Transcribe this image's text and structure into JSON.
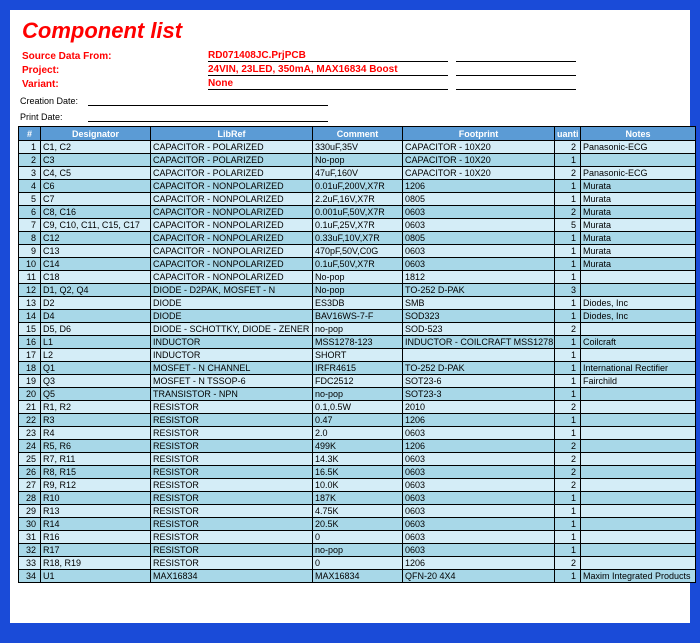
{
  "title": "Component list",
  "meta": {
    "source_label": "Source Data From:",
    "source_value": "RD071408JC.PrjPCB",
    "project_label": "Project:",
    "project_value": "24VIN, 23LED, 350mA, MAX16834 Boost",
    "variant_label": "Variant:",
    "variant_value": "None",
    "creation_label": "Creation Date:",
    "print_label": "Print Date:"
  },
  "columns": [
    "#",
    "Designator",
    "LibRef",
    "Comment",
    "Footprint",
    "uanti",
    "Notes"
  ],
  "rows": [
    [
      "1",
      "C1, C2",
      "CAPACITOR - POLARIZED",
      "330uF,35V",
      "CAPACITOR - 10X20",
      "2",
      "Panasonic-ECG"
    ],
    [
      "2",
      "C3",
      "CAPACITOR - POLARIZED",
      "No-pop",
      "CAPACITOR - 10X20",
      "1",
      ""
    ],
    [
      "3",
      "C4, C5",
      "CAPACITOR - POLARIZED",
      "47uF,160V",
      "CAPACITOR - 10X20",
      "2",
      "Panasonic-ECG"
    ],
    [
      "4",
      "C6",
      "CAPACITOR - NONPOLARIZED",
      "0.01uF,200V,X7R",
      "1206",
      "1",
      "Murata"
    ],
    [
      "5",
      "C7",
      "CAPACITOR - NONPOLARIZED",
      "2.2uF,16V,X7R",
      "0805",
      "1",
      "Murata"
    ],
    [
      "6",
      "C8, C16",
      "CAPACITOR - NONPOLARIZED",
      "0.001uF,50V,X7R",
      "0603",
      "2",
      "Murata"
    ],
    [
      "7",
      "C9, C10, C11, C15, C17",
      "CAPACITOR - NONPOLARIZED",
      "0.1uF,25V,X7R",
      "0603",
      "5",
      "Murata"
    ],
    [
      "8",
      "C12",
      "CAPACITOR - NONPOLARIZED",
      "0.33uF,10V,X7R",
      "0805",
      "1",
      "Murata"
    ],
    [
      "9",
      "C13",
      "CAPACITOR - NONPOLARIZED",
      "470pF,50V,C0G",
      "0603",
      "1",
      "Murata"
    ],
    [
      "10",
      "C14",
      "CAPACITOR - NONPOLARIZED",
      "0.1uF,50V,X7R",
      "0603",
      "1",
      "Murata"
    ],
    [
      "11",
      "C18",
      "CAPACITOR - NONPOLARIZED",
      "No-pop",
      "1812",
      "1",
      ""
    ],
    [
      "12",
      "D1, Q2, Q4",
      "DIODE - D2PAK, MOSFET - N",
      "No-pop",
      "TO-252 D-PAK",
      "3",
      ""
    ],
    [
      "13",
      "D2",
      "DIODE",
      "ES3DB",
      "SMB",
      "1",
      "Diodes, Inc"
    ],
    [
      "14",
      "D4",
      "DIODE",
      "BAV16WS-7-F",
      "SOD323",
      "1",
      "Diodes, Inc"
    ],
    [
      "15",
      "D5, D6",
      "DIODE - SCHOTTKY, DIODE - ZENER",
      "no-pop",
      "SOD-523",
      "2",
      ""
    ],
    [
      "16",
      "L1",
      "INDUCTOR",
      "MSS1278-123",
      "INDUCTOR - COILCRAFT MSS1278",
      "1",
      "Coilcraft"
    ],
    [
      "17",
      "L2",
      "INDUCTOR",
      "SHORT",
      "",
      "1",
      ""
    ],
    [
      "18",
      "Q1",
      "MOSFET - N CHANNEL",
      "IRFR4615",
      "TO-252 D-PAK",
      "1",
      "International Rectifier"
    ],
    [
      "19",
      "Q3",
      "MOSFET - N TSSOP-6",
      "FDC2512",
      "SOT23-6",
      "1",
      "Fairchild"
    ],
    [
      "20",
      "Q5",
      "TRANSISTOR - NPN",
      "no-pop",
      "SOT23-3",
      "1",
      ""
    ],
    [
      "21",
      "R1, R2",
      "RESISTOR",
      "0.1,0.5W",
      "2010",
      "2",
      ""
    ],
    [
      "22",
      "R3",
      "RESISTOR",
      "0.47",
      "1206",
      "1",
      ""
    ],
    [
      "23",
      "R4",
      "RESISTOR",
      "2.0",
      "0603",
      "1",
      ""
    ],
    [
      "24",
      "R5, R6",
      "RESISTOR",
      "499K",
      "1206",
      "2",
      ""
    ],
    [
      "25",
      "R7, R11",
      "RESISTOR",
      "14.3K",
      "0603",
      "2",
      ""
    ],
    [
      "26",
      "R8, R15",
      "RESISTOR",
      "16.5K",
      "0603",
      "2",
      ""
    ],
    [
      "27",
      "R9, R12",
      "RESISTOR",
      "10.0K",
      "0603",
      "2",
      ""
    ],
    [
      "28",
      "R10",
      "RESISTOR",
      "187K",
      "0603",
      "1",
      ""
    ],
    [
      "29",
      "R13",
      "RESISTOR",
      "4.75K",
      "0603",
      "1",
      ""
    ],
    [
      "30",
      "R14",
      "RESISTOR",
      "20.5K",
      "0603",
      "1",
      ""
    ],
    [
      "31",
      "R16",
      "RESISTOR",
      "0",
      "0603",
      "1",
      ""
    ],
    [
      "32",
      "R17",
      "RESISTOR",
      "no-pop",
      "0603",
      "1",
      ""
    ],
    [
      "33",
      "R18, R19",
      "RESISTOR",
      "0",
      "1206",
      "2",
      ""
    ],
    [
      "34",
      "U1",
      "MAX16834",
      "MAX16834",
      "QFN-20 4X4",
      "1",
      "Maxim Integrated Products"
    ]
  ]
}
